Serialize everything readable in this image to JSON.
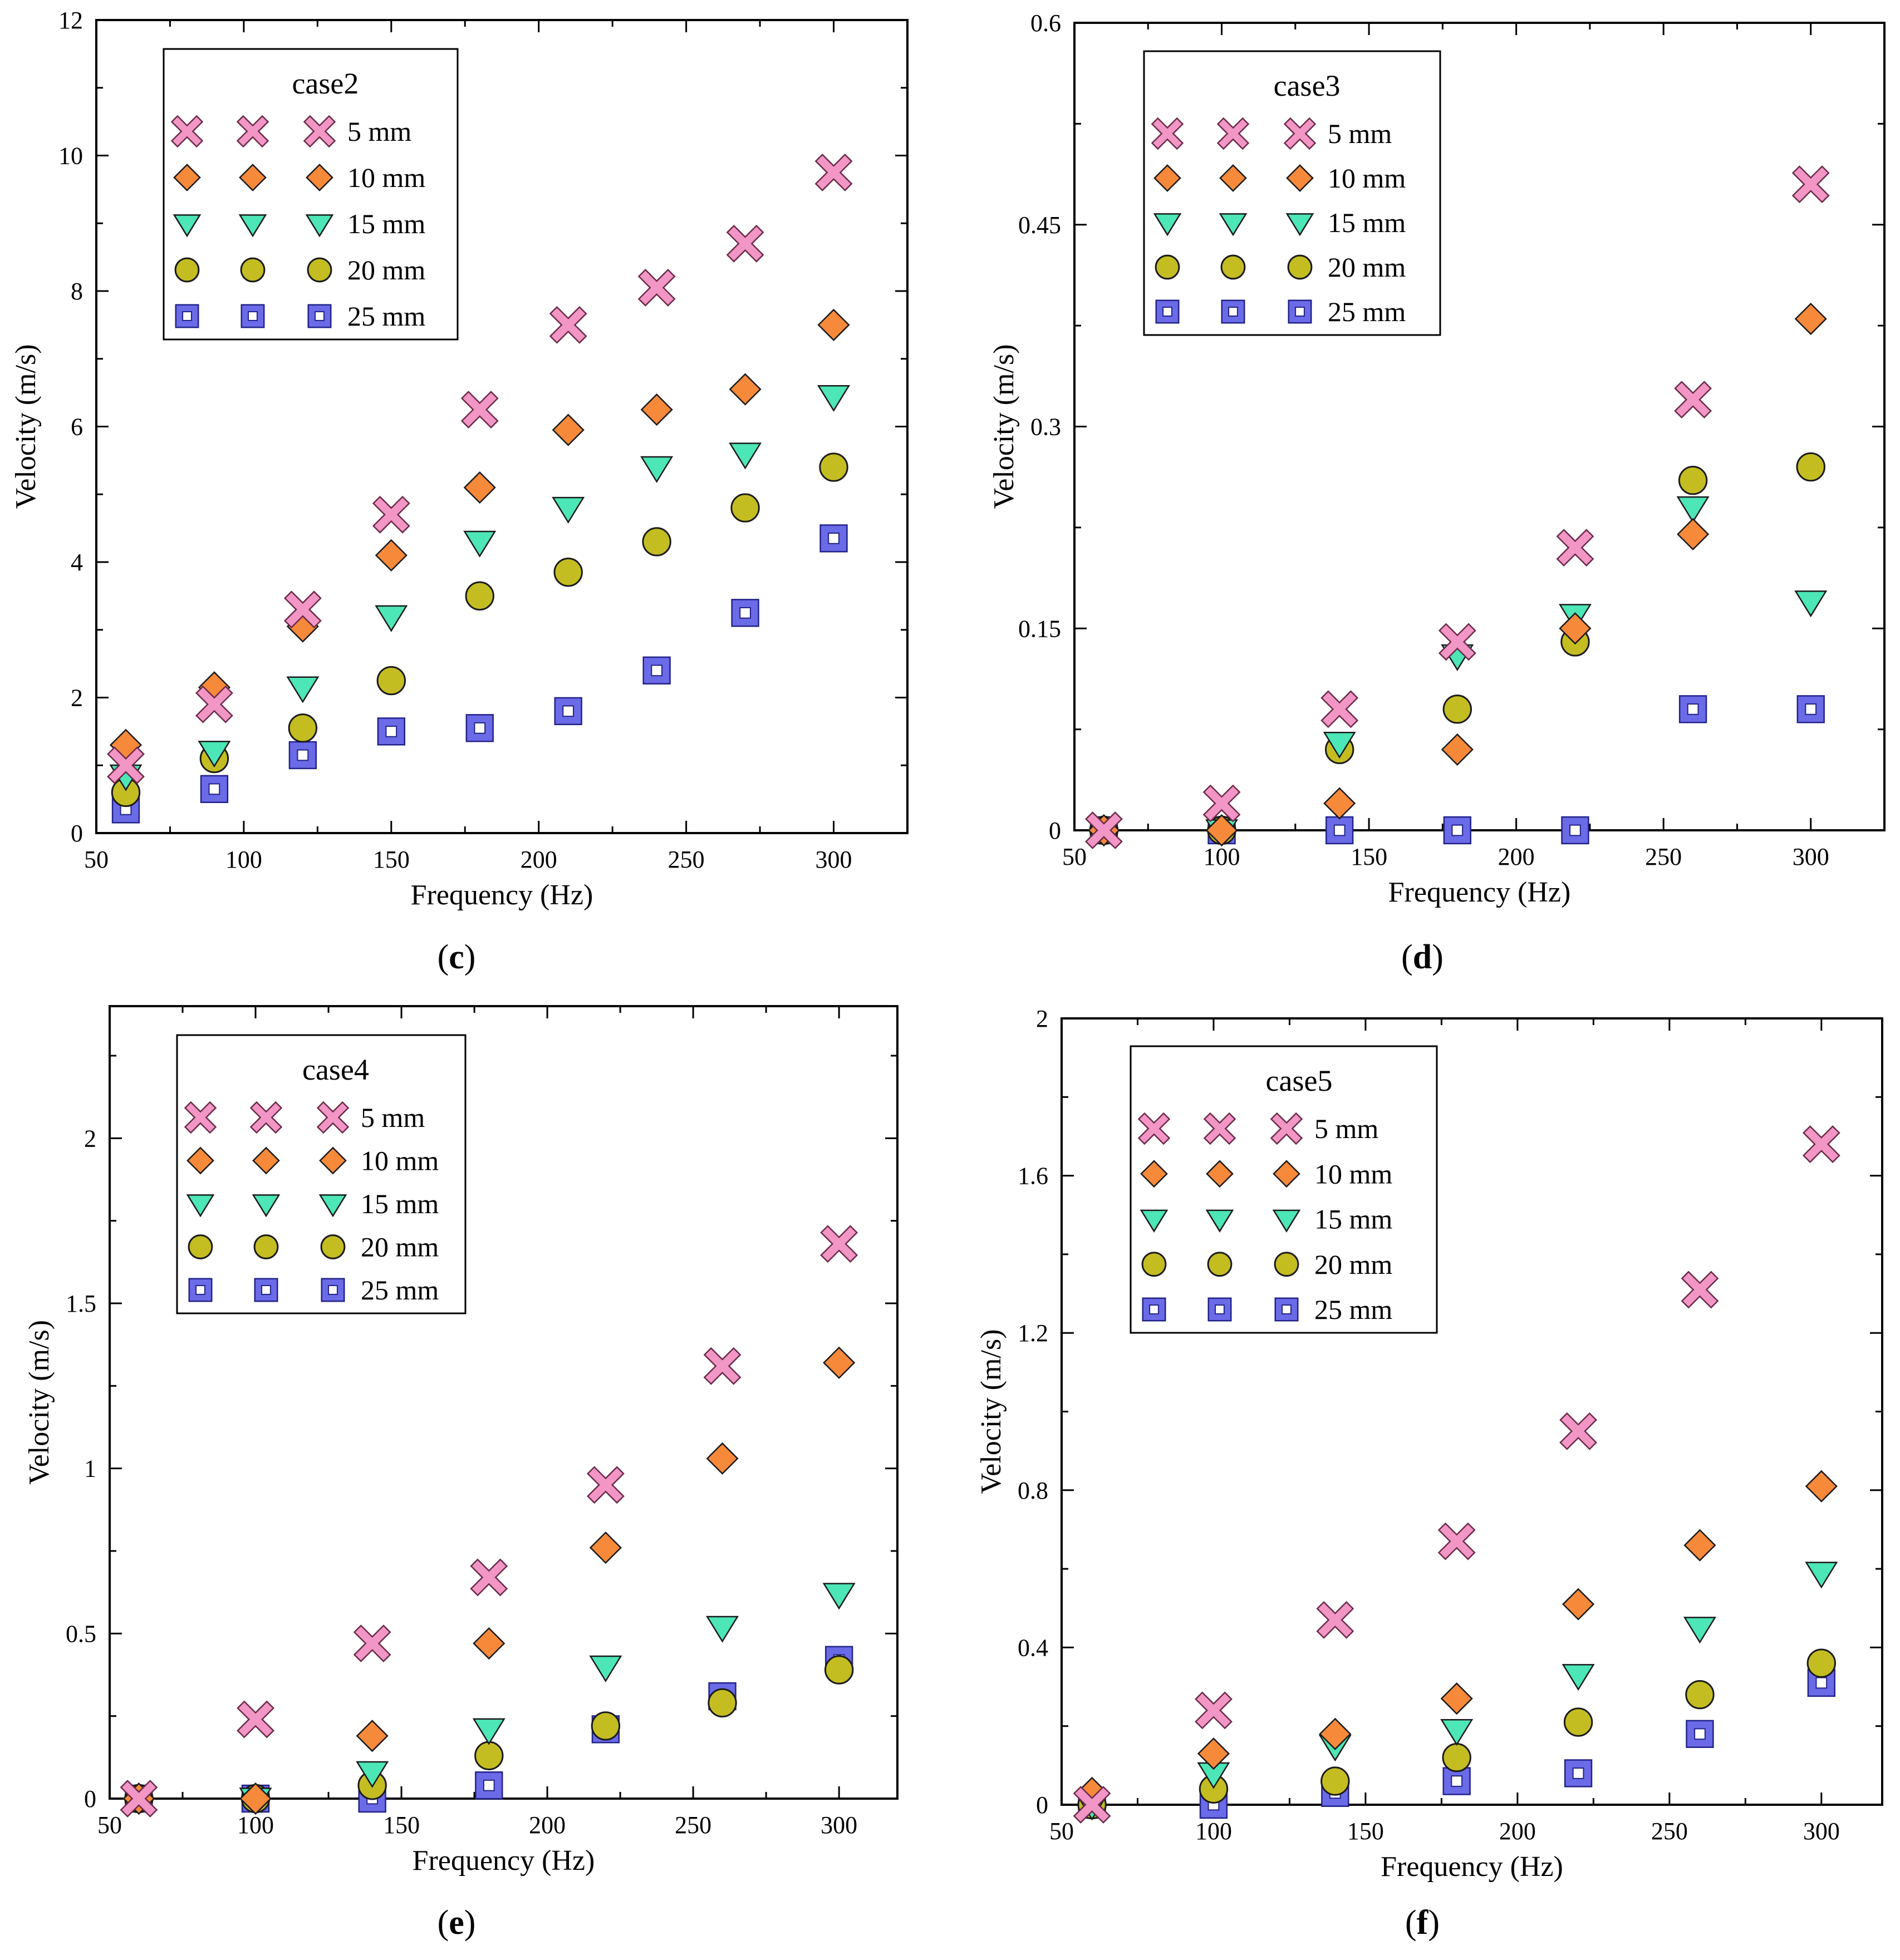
{
  "figure": {
    "series_names": [
      "5 mm",
      "10 mm",
      "15 mm",
      "20 mm",
      "25 mm"
    ],
    "series_colors": {
      "5 mm": "#f296c6",
      "10 mm": "#f6893a",
      "15 mm": "#4de6b6",
      "20 mm": "#c4bd22",
      "25 mm": "#6b6be8"
    }
  },
  "chart_data": [
    {
      "id": "c",
      "type": "scatter",
      "panel_label": "c",
      "legend_title": "case2",
      "xlabel": "Frequency (Hz)",
      "ylabel": "Velocity (m/s)",
      "xlim": [
        50,
        325
      ],
      "ylim": [
        0,
        12
      ],
      "xticks": [
        50,
        100,
        150,
        200,
        250,
        300
      ],
      "xtick_labels": [
        "50",
        "100",
        "150",
        "200",
        "250",
        "300"
      ],
      "yticks": [
        0,
        2,
        4,
        6,
        8,
        10,
        12
      ],
      "ytick_labels": [
        "0",
        "2",
        "4",
        "6",
        "8",
        "10",
        "12"
      ],
      "x": [
        60,
        90,
        120,
        150,
        180,
        210,
        240,
        270,
        300
      ],
      "series": [
        {
          "name": "5 mm",
          "values": [
            1.0,
            1.9,
            3.3,
            4.7,
            6.25,
            7.5,
            8.05,
            8.7,
            9.75
          ]
        },
        {
          "name": "10 mm",
          "values": [
            1.3,
            2.15,
            3.05,
            4.1,
            5.1,
            5.95,
            6.25,
            6.55,
            7.5
          ]
        },
        {
          "name": "15 mm",
          "values": [
            0.85,
            1.2,
            2.15,
            3.2,
            4.3,
            4.8,
            5.4,
            5.6,
            6.45
          ]
        },
        {
          "name": "20 mm",
          "values": [
            0.6,
            1.1,
            1.55,
            2.25,
            3.5,
            3.85,
            4.3,
            4.8,
            5.4
          ]
        },
        {
          "name": "25 mm",
          "values": [
            0.35,
            0.65,
            1.15,
            1.5,
            1.55,
            1.8,
            2.4,
            3.25,
            4.35
          ]
        }
      ]
    },
    {
      "id": "d",
      "type": "scatter",
      "panel_label": "d",
      "legend_title": "case3",
      "xlabel": "Frequency (Hz)",
      "ylabel": "Velocity (m/s)",
      "xlim": [
        50,
        325
      ],
      "ylim": [
        0,
        0.6
      ],
      "xticks": [
        50,
        100,
        150,
        200,
        250,
        300
      ],
      "xtick_labels": [
        "50",
        "100",
        "150",
        "200",
        "250",
        "300"
      ],
      "yticks": [
        0,
        0.15,
        0.3,
        0.45,
        0.6
      ],
      "ytick_labels": [
        "0",
        "0.15",
        "0.3",
        "0.45",
        "0.6"
      ],
      "x": [
        60,
        100,
        140,
        180,
        220,
        260,
        300
      ],
      "series": [
        {
          "name": "5 mm",
          "values": [
            0,
            0.02,
            0.09,
            0.14,
            0.21,
            0.32,
            0.48
          ]
        },
        {
          "name": "10 mm",
          "values": [
            0,
            0,
            0.02,
            0.06,
            0.15,
            0.22,
            0.38
          ]
        },
        {
          "name": "15 mm",
          "values": [
            0,
            0,
            0.065,
            0.13,
            0.16,
            0.24,
            0.17
          ]
        },
        {
          "name": "20 mm",
          "values": [
            0,
            0,
            0.06,
            0.09,
            0.14,
            0.26,
            0.27
          ]
        },
        {
          "name": "25 mm",
          "values": [
            0,
            0,
            0,
            0,
            0,
            0.09,
            0.09
          ]
        }
      ]
    },
    {
      "id": "e",
      "type": "scatter",
      "panel_label": "e",
      "legend_title": "case4",
      "xlabel": "Frequency (Hz)",
      "ylabel": "Velocity (m/s)",
      "xlim": [
        50,
        320
      ],
      "ylim": [
        0,
        2.4
      ],
      "xticks": [
        50,
        100,
        150,
        200,
        250,
        300
      ],
      "xtick_labels": [
        "50",
        "100",
        "150",
        "200",
        "250",
        "300"
      ],
      "yticks": [
        0,
        0.5,
        1,
        1.5,
        2
      ],
      "ytick_labels": [
        "0",
        "0.5",
        "1",
        "1.5",
        "2"
      ],
      "x": [
        60,
        100,
        140,
        180,
        220,
        260,
        300
      ],
      "series": [
        {
          "name": "5 mm",
          "values": [
            0,
            0.24,
            0.47,
            0.67,
            0.95,
            1.31,
            1.68
          ]
        },
        {
          "name": "10 mm",
          "values": [
            0,
            0,
            0.19,
            0.47,
            0.76,
            1.03,
            1.32
          ]
        },
        {
          "name": "15 mm",
          "values": [
            0,
            0,
            0.08,
            0.21,
            0.4,
            0.52,
            0.62
          ]
        },
        {
          "name": "20 mm",
          "values": [
            0,
            0,
            0.04,
            0.13,
            0.22,
            0.29,
            0.39
          ]
        },
        {
          "name": "25 mm",
          "values": [
            0,
            0,
            0,
            0.04,
            0.21,
            0.31,
            0.42
          ]
        }
      ]
    },
    {
      "id": "f",
      "type": "scatter",
      "panel_label": "f",
      "legend_title": "case5",
      "xlabel": "Frequency (Hz)",
      "ylabel": "Velocity (m/s)",
      "xlim": [
        50,
        320
      ],
      "ylim": [
        0,
        2
      ],
      "xticks": [
        50,
        100,
        150,
        200,
        250,
        300
      ],
      "xtick_labels": [
        "50",
        "100",
        "150",
        "200",
        "250",
        "300"
      ],
      "yticks": [
        0,
        0.4,
        0.8,
        1.2,
        1.6,
        2
      ],
      "ytick_labels": [
        "0",
        "0.4",
        "0.8",
        "1.2",
        "1.6",
        "2"
      ],
      "x": [
        60,
        100,
        140,
        180,
        220,
        260,
        300
      ],
      "series": [
        {
          "name": "5 mm",
          "values": [
            0,
            0.24,
            0.47,
            0.67,
            0.95,
            1.31,
            1.68
          ]
        },
        {
          "name": "10 mm",
          "values": [
            0.03,
            0.13,
            0.18,
            0.27,
            0.51,
            0.66,
            0.81
          ]
        },
        {
          "name": "15 mm",
          "values": [
            0,
            0.08,
            0.15,
            0.19,
            0.33,
            0.45,
            0.59
          ]
        },
        {
          "name": "20 mm",
          "values": [
            0,
            0.04,
            0.06,
            0.12,
            0.21,
            0.28,
            0.36
          ]
        },
        {
          "name": "25 mm",
          "values": [
            0,
            0,
            0.03,
            0.06,
            0.08,
            0.18,
            0.31
          ]
        }
      ]
    }
  ]
}
